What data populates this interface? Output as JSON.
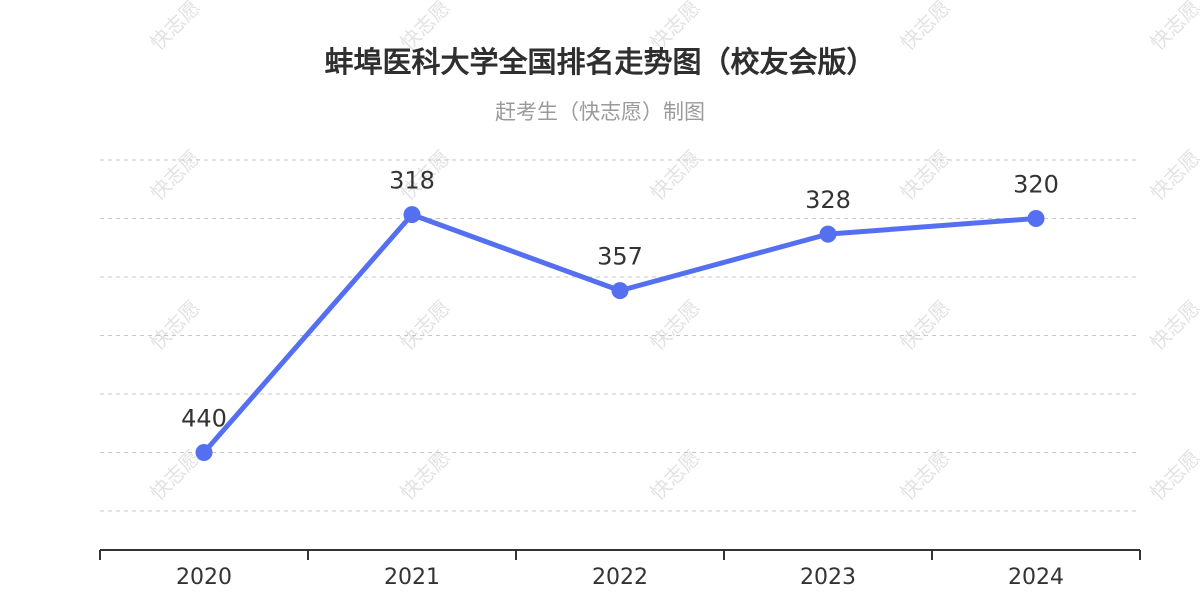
{
  "watermark": {
    "text": "快志愿"
  },
  "chart_data": {
    "type": "line",
    "title": "蚌埠医科大学全国排名走势图（校友会版）",
    "subtitle": "赶考生（快志愿）制图",
    "categories": [
      "2020",
      "2021",
      "2022",
      "2023",
      "2024"
    ],
    "series": [
      {
        "values": [
          440,
          318,
          357,
          328,
          320
        ],
        "color": "#5470f0"
      }
    ],
    "axes": {
      "y_inverse": true,
      "ylim": [
        290,
        490
      ],
      "y_gridlines": [
        290,
        320,
        350,
        380,
        410,
        440,
        470
      ],
      "show_y_labels": false
    },
    "grid": true
  }
}
